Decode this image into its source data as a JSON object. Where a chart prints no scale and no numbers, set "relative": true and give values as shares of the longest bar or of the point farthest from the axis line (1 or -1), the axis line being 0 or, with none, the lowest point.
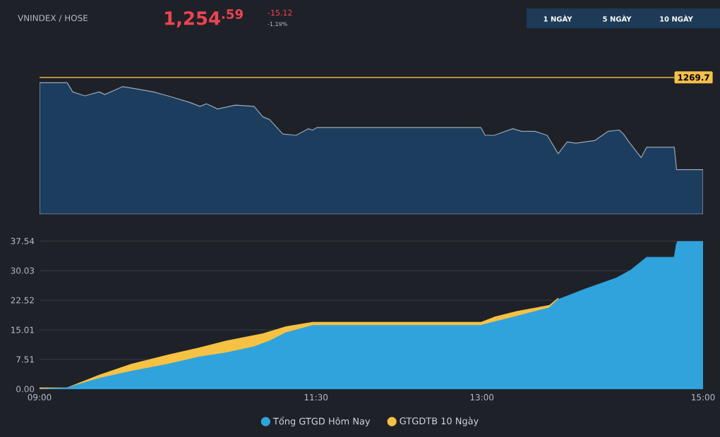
{
  "chart_data": [
    {
      "type": "area",
      "title": "VNINDEX / HOSE",
      "relative": true,
      "annotations": [
        "1,254$^{.59}$",
        "-15.12",
        "-1.19%",
        "1 NGÀY",
        "5 NGÀY",
        "10 NGÀY",
        {
          "text": "1269.7",
          "y": 1.04
        }
      ],
      "xlim": [
        9,
        15
      ],
      "ref_lines": [
        {
          "axis": "y",
          "value": 1.04,
          "color": "#c9a13a"
        }
      ],
      "series": [
        {
          "color": "#1d3d5e",
          "x": [
            9.0,
            9.25,
            9.3,
            9.41,
            9.54,
            9.59,
            9.75,
            9.83,
            10.03,
            10.16,
            10.36,
            10.45,
            10.51,
            10.61,
            10.77,
            10.94,
            11.02,
            11.08,
            11.2,
            11.32,
            11.43,
            11.47,
            11.51,
            12.99,
            13.03,
            13.11,
            13.28,
            13.36,
            13.48,
            13.59,
            13.69,
            13.77,
            13.85,
            14.02,
            14.14,
            14.24,
            14.28,
            14.33,
            14.44,
            14.49,
            14.74,
            14.76,
            15.0
          ],
          "values": [
            1.0,
            1.0,
            0.93,
            0.9,
            0.93,
            0.91,
            0.97,
            0.96,
            0.93,
            0.9,
            0.85,
            0.82,
            0.84,
            0.8,
            0.83,
            0.82,
            0.74,
            0.72,
            0.61,
            0.6,
            0.65,
            0.64,
            0.66,
            0.66,
            0.6,
            0.6,
            0.65,
            0.63,
            0.63,
            0.6,
            0.46,
            0.55,
            0.54,
            0.56,
            0.63,
            0.64,
            0.61,
            0.55,
            0.43,
            0.51,
            0.51,
            0.34,
            0.34
          ]
        }
      ]
    },
    {
      "type": "area",
      "xlim": [
        9,
        15
      ],
      "ylim": [
        0,
        37.54
      ],
      "xticks": [
        {
          "value": 9,
          "label": "09:00"
        },
        {
          "value": 11.5,
          "label": "11:30"
        },
        {
          "value": 13,
          "label": "13:00"
        },
        {
          "value": 15,
          "label": "15:00"
        }
      ],
      "yticks": [
        {
          "value": 0,
          "label": "0.00"
        },
        7.51,
        15.01,
        22.52,
        30.03,
        37.54
      ],
      "grid": "y",
      "legend": "bottom",
      "series": [
        {
          "name": "Tổng GTGD Hôm Nay",
          "color": "#30a3dd",
          "x": [
            9.0,
            9.25,
            9.54,
            9.83,
            10.16,
            10.44,
            10.69,
            10.94,
            11.08,
            11.23,
            11.43,
            11.47,
            12.99,
            13.11,
            13.32,
            13.61,
            13.69,
            13.94,
            14.22,
            14.35,
            14.49,
            14.74,
            14.76,
            14.77,
            15.0
          ],
          "values": [
            0.0,
            0.3,
            2.7,
            4.5,
            6.3,
            8.1,
            9.2,
            10.7,
            12.2,
            14.3,
            15.8,
            16.1,
            16.1,
            17.0,
            18.5,
            20.6,
            22.7,
            25.4,
            28.2,
            30.2,
            33.4,
            33.4,
            36.8,
            37.4,
            37.4
          ]
        },
        {
          "name": "GTGDTB 10 Ngày",
          "color": "#f6c244",
          "x": [
            9.0,
            9.25,
            9.54,
            9.83,
            10.16,
            10.44,
            10.69,
            11.02,
            11.23,
            11.47,
            12.99,
            13.11,
            13.32,
            13.61,
            13.69
          ],
          "values": [
            0.3,
            0.3,
            3.5,
            6.3,
            8.6,
            10.4,
            12.2,
            14.0,
            15.8,
            16.9,
            16.9,
            18.2,
            19.7,
            21.2,
            23.0
          ]
        }
      ]
    }
  ]
}
